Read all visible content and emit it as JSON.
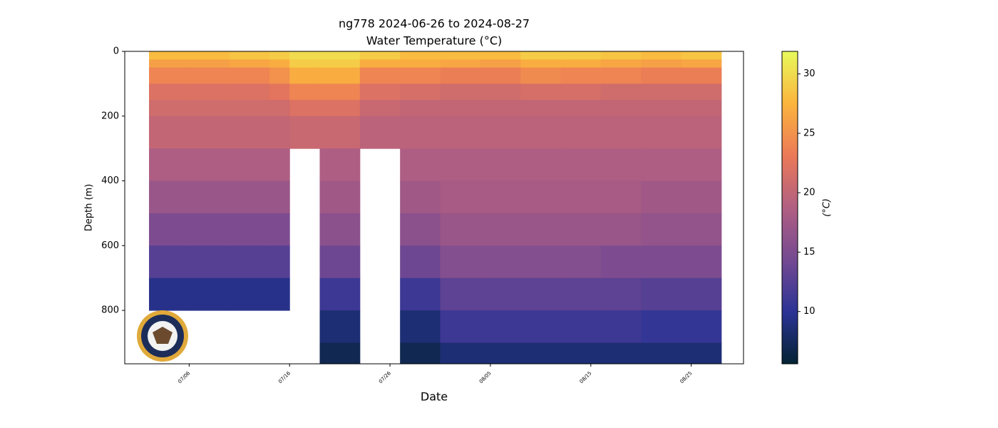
{
  "chart_data": {
    "type": "heatmap",
    "title": "ng778 2024-06-26 to 2024-08-27",
    "subtitle": "Water Temperature (°C)",
    "x_label": "Date",
    "y_label": "Depth (m)",
    "colorbar_label": "(°C)",
    "x_edges": [
      "2024-07-02",
      "2024-07-06",
      "2024-07-10",
      "2024-07-14",
      "2024-07-16",
      "2024-07-19",
      "2024-07-23",
      "2024-07-27",
      "2024-07-31",
      "2024-08-04",
      "2024-08-08",
      "2024-08-12",
      "2024-08-16",
      "2024-08-20",
      "2024-08-24",
      "2024-08-28"
    ],
    "y_edges": [
      0,
      25,
      50,
      100,
      150,
      200,
      300,
      400,
      500,
      600,
      700,
      800,
      900,
      965
    ],
    "values": [
      [
        28,
        28,
        28.5,
        29,
        30,
        30,
        29,
        28,
        28,
        28,
        29,
        29,
        28.5,
        28,
        28.5
      ],
      [
        26,
        26,
        26.5,
        27,
        29,
        29,
        27,
        27,
        26.5,
        26,
        27,
        27,
        26.5,
        26,
        26.5
      ],
      [
        24,
        24,
        24,
        25,
        27,
        27,
        24,
        24,
        23.5,
        23.5,
        24.5,
        24,
        24,
        23.5,
        23.5
      ],
      [
        22,
        22,
        22,
        22.5,
        24,
        24,
        22,
        21.5,
        21,
        21,
        21.5,
        21.5,
        21,
        21,
        21
      ],
      [
        21,
        21,
        21,
        21,
        22,
        22,
        20.5,
        20,
        20,
        20,
        20,
        20,
        20,
        20,
        20
      ],
      [
        20,
        20,
        20,
        20,
        20.5,
        20.5,
        19.5,
        19.5,
        19.5,
        19.5,
        19.5,
        19.5,
        19.5,
        19.5,
        19.5
      ],
      [
        18.5,
        18.5,
        18.5,
        18.5,
        null,
        18.5,
        null,
        18.5,
        18.5,
        18.5,
        18.5,
        18.5,
        18.5,
        18.5,
        18.5
      ],
      [
        17,
        17,
        17,
        17,
        null,
        17.5,
        null,
        17.5,
        18,
        18,
        18,
        18,
        18,
        17.5,
        17.5
      ],
      [
        15,
        15,
        15,
        15,
        null,
        16,
        null,
        16,
        17,
        17,
        17,
        17,
        17,
        16.5,
        16.5
      ],
      [
        12.5,
        12.5,
        12.5,
        12.5,
        null,
        14,
        null,
        14,
        15.5,
        15.5,
        15.5,
        15.5,
        15,
        15,
        15
      ],
      [
        9.5,
        9.5,
        9.5,
        9.5,
        null,
        11,
        null,
        11,
        13,
        13,
        13,
        13,
        13,
        12.5,
        12.5
      ],
      [
        null,
        null,
        null,
        null,
        null,
        8.5,
        null,
        8.5,
        11,
        11,
        11,
        11,
        11,
        10.5,
        10.5
      ],
      [
        null,
        null,
        null,
        null,
        null,
        7,
        null,
        7,
        8.5,
        8.5,
        8.5,
        8.5,
        8.5,
        8.5,
        8.5
      ]
    ],
    "xlim": [
      "2024-06-29T14:00",
      "2024-08-30T05:00"
    ],
    "xticks": [
      {
        "value": "2024-07-06",
        "label": "07/06"
      },
      {
        "value": "2024-07-16",
        "label": "07/16"
      },
      {
        "value": "2024-07-26",
        "label": "07/26"
      },
      {
        "value": "2024-08-05",
        "label": "08/05"
      },
      {
        "value": "2024-08-15",
        "label": "08/15"
      },
      {
        "value": "2024-08-25",
        "label": "08/25"
      }
    ],
    "ylim": [
      965,
      0
    ],
    "yticks": [
      0,
      200,
      400,
      600,
      800
    ],
    "clim": [
      5.6,
      31.9
    ],
    "cticks": [
      10,
      15,
      20,
      25,
      30
    ],
    "colormap": [
      "#042333",
      "#2c3395",
      "#744992",
      "#b15f82",
      "#eb7958",
      "#fbb43d",
      "#e8fa5b"
    ]
  }
}
